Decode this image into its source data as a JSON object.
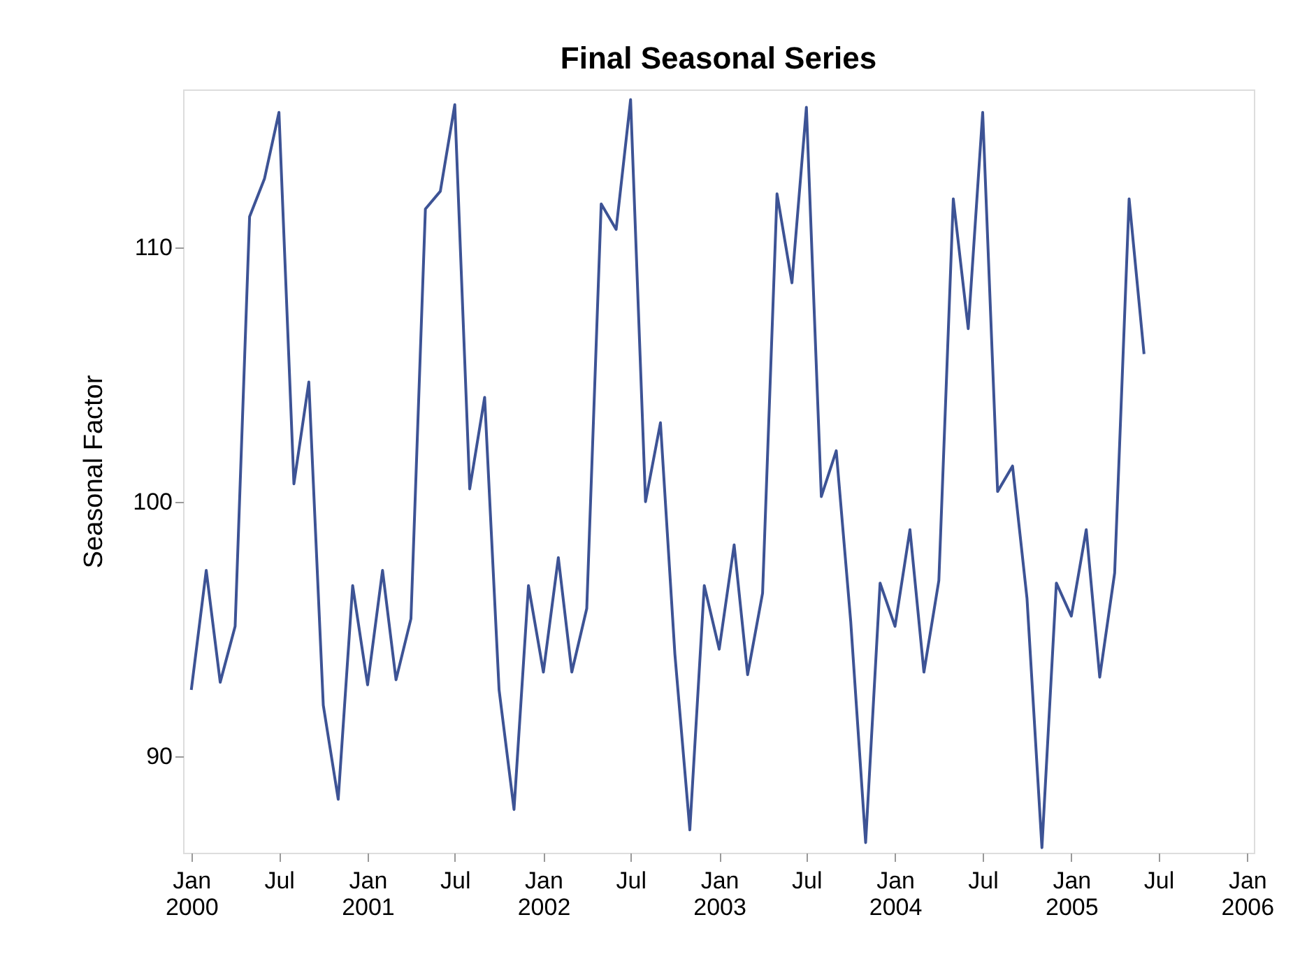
{
  "chart_data": {
    "type": "line",
    "title": "Final Seasonal Series",
    "ylabel": "Seasonal Factor",
    "x": [
      "2000-01",
      "2000-02",
      "2000-03",
      "2000-04",
      "2000-05",
      "2000-06",
      "2000-07",
      "2000-08",
      "2000-09",
      "2000-10",
      "2000-11",
      "2000-12",
      "2001-01",
      "2001-02",
      "2001-03",
      "2001-04",
      "2001-05",
      "2001-06",
      "2001-07",
      "2001-08",
      "2001-09",
      "2001-10",
      "2001-11",
      "2001-12",
      "2002-01",
      "2002-02",
      "2002-03",
      "2002-04",
      "2002-05",
      "2002-06",
      "2002-07",
      "2002-08",
      "2002-09",
      "2002-10",
      "2002-11",
      "2002-12",
      "2003-01",
      "2003-02",
      "2003-03",
      "2003-04",
      "2003-05",
      "2003-06",
      "2003-07",
      "2003-08",
      "2003-09",
      "2003-10",
      "2003-11",
      "2003-12",
      "2004-01",
      "2004-02",
      "2004-03",
      "2004-04",
      "2004-05",
      "2004-06",
      "2004-07",
      "2004-08",
      "2004-09",
      "2004-10",
      "2004-11",
      "2004-12",
      "2005-01",
      "2005-02",
      "2005-03",
      "2005-04",
      "2005-05",
      "2005-06"
    ],
    "series": [
      {
        "color": "#3d5395",
        "values": [
          92.6,
          97.3,
          92.9,
          95.1,
          111.2,
          112.7,
          115.3,
          100.7,
          104.7,
          92.0,
          88.3,
          96.7,
          92.8,
          97.3,
          93.0,
          95.4,
          111.5,
          112.2,
          115.6,
          100.5,
          104.1,
          92.6,
          87.9,
          96.7,
          93.3,
          97.8,
          93.3,
          95.8,
          111.7,
          110.7,
          115.8,
          100.0,
          103.1,
          94.0,
          87.1,
          96.7,
          94.2,
          98.3,
          93.2,
          96.4,
          112.1,
          108.6,
          115.5,
          100.2,
          102.0,
          95.3,
          86.6,
          96.8,
          95.1,
          98.9,
          93.3,
          96.9,
          111.9,
          106.8,
          115.3,
          100.4,
          101.4,
          96.2,
          86.4,
          96.8,
          95.5,
          98.9,
          93.1,
          97.2,
          111.9,
          105.8
        ]
      }
    ],
    "xlim": [
      "1999-12-15",
      "2006-01-15"
    ],
    "xticks": [
      {
        "value": "2000-01",
        "label": "Jan 2000"
      },
      {
        "value": "2000-07",
        "label": "Jul"
      },
      {
        "value": "2001-01",
        "label": "Jan 2001"
      },
      {
        "value": "2001-07",
        "label": "Jul"
      },
      {
        "value": "2002-01",
        "label": "Jan 2002"
      },
      {
        "value": "2002-07",
        "label": "Jul"
      },
      {
        "value": "2003-01",
        "label": "Jan 2003"
      },
      {
        "value": "2003-07",
        "label": "Jul"
      },
      {
        "value": "2004-01",
        "label": "Jan 2004"
      },
      {
        "value": "2004-07",
        "label": "Jul"
      },
      {
        "value": "2005-01",
        "label": "Jan 2005"
      },
      {
        "value": "2005-07",
        "label": "Jul"
      },
      {
        "value": "2006-01",
        "label": "Jan 2006"
      }
    ],
    "ylim": [
      86.2,
      116.2
    ],
    "yticks": [
      90,
      100,
      110
    ],
    "grid": false,
    "marker": "none",
    "line_style": "solid"
  }
}
